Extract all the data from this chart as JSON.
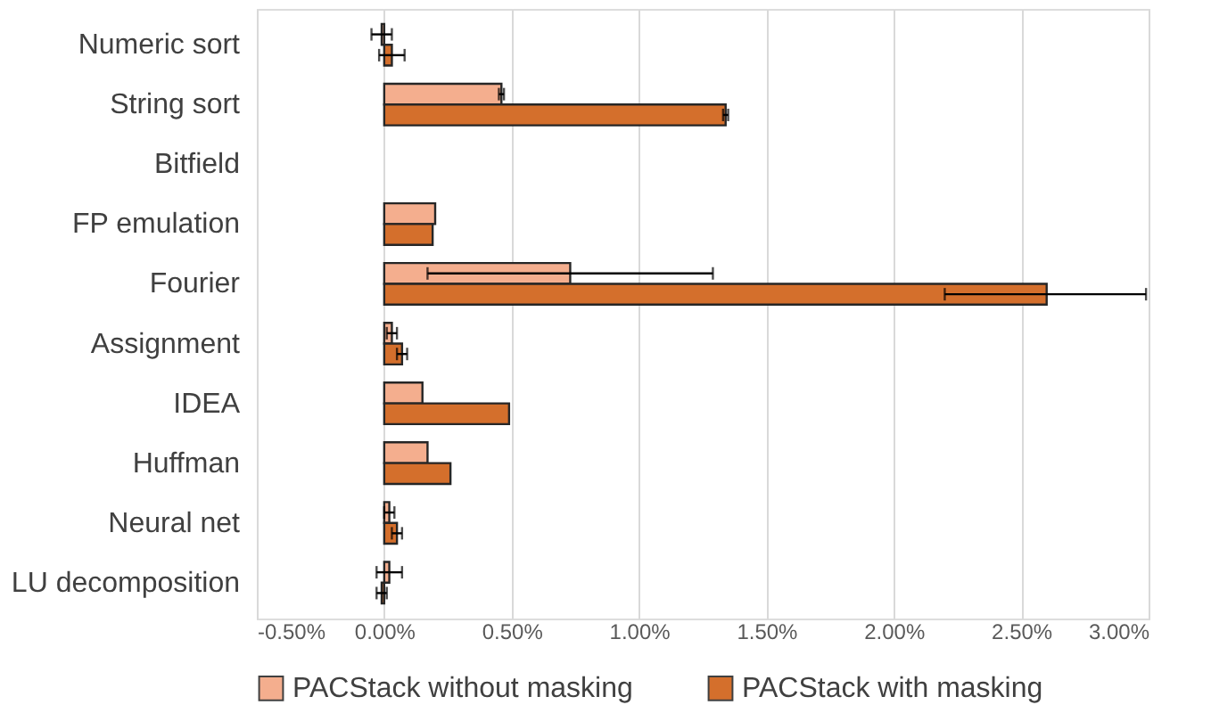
{
  "chart_data": {
    "type": "bar",
    "orientation": "horizontal",
    "categories": [
      "Numeric sort",
      "String sort",
      "Bitfield",
      "FP emulation",
      "Fourier",
      "Assignment",
      "IDEA",
      "Huffman",
      "Neural net",
      "LU decomposition"
    ],
    "series": [
      {
        "name": "PACStack without masking",
        "color": "#f4ae8e",
        "values": [
          -0.01,
          0.46,
          0,
          0.2,
          0.73,
          0.03,
          0.15,
          0.17,
          0.02,
          0.02
        ],
        "errors": [
          0.04,
          0.01,
          null,
          null,
          [
            0.17,
            1.29
          ],
          0.02,
          null,
          null,
          0.02,
          0.05
        ]
      },
      {
        "name": "PACStack with masking",
        "color": "#d46f2c",
        "values": [
          0.03,
          1.34,
          0,
          0.19,
          2.6,
          0.07,
          0.49,
          0.26,
          0.05,
          -0.01
        ],
        "errors": [
          0.05,
          0.01,
          null,
          null,
          [
            2.2,
            2.99
          ],
          0.02,
          null,
          null,
          0.02,
          0.02
        ]
      }
    ],
    "xlim": [
      -0.5,
      3.0
    ],
    "xticks": [
      {
        "value": -0.5,
        "label": "-0.50%"
      },
      {
        "value": 0,
        "label": "0.00%"
      },
      {
        "value": 0.5,
        "label": "0.50%"
      },
      {
        "value": 1.0,
        "label": "1.00%"
      },
      {
        "value": 1.5,
        "label": "1.50%"
      },
      {
        "value": 2.0,
        "label": "2.00%"
      },
      {
        "value": 2.5,
        "label": "2.50%"
      },
      {
        "value": 3.0,
        "label": "3.00%"
      }
    ],
    "grid": "x",
    "legend": "bottom"
  }
}
